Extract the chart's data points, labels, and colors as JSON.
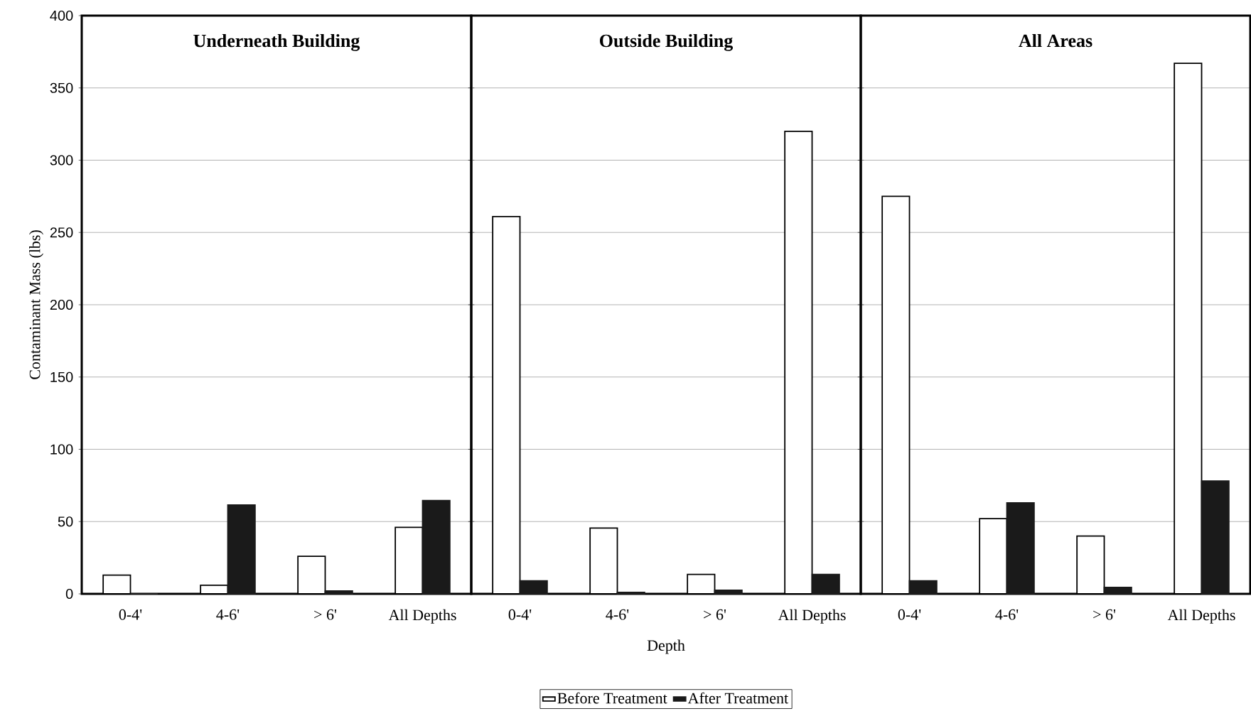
{
  "chart_data": [
    {
      "type": "bar",
      "title": "Underneath Building",
      "ylabel": "Contaminant Mass (lbs)",
      "categories": [
        "0-4'",
        "4-6'",
        "> 6'",
        "All Depths"
      ],
      "series": [
        {
          "color": "#ffffff",
          "values": [
            13,
            6,
            26,
            46
          ]
        },
        {
          "color": "#1a1a1a",
          "values": [
            0,
            61.5,
            2,
            64.5
          ]
        }
      ],
      "ylim": [
        0,
        400
      ],
      "yticks": [
        0,
        50,
        100,
        150,
        200,
        250,
        300,
        350,
        400
      ],
      "grid": "y"
    },
    {
      "type": "bar",
      "title": "Outside Building",
      "xlabel": "Depth",
      "categories": [
        "0-4'",
        "4-6'",
        "> 6'",
        "All Depths"
      ],
      "series": [
        {
          "name": "Before Treatment",
          "color": "#ffffff",
          "values": [
            261,
            45.5,
            13.5,
            320
          ]
        },
        {
          "name": "After Treatment",
          "color": "#1a1a1a",
          "values": [
            9,
            1,
            2.5,
            13.5
          ]
        }
      ],
      "ylim": [
        0,
        400
      ],
      "yticks": [
        0,
        50,
        100,
        150,
        200,
        250,
        300,
        350,
        400
      ],
      "grid": "y",
      "legend": "bottom",
      "tick_labels": "x"
    },
    {
      "type": "bar",
      "title": "All Areas",
      "categories": [
        "0-4'",
        "4-6'",
        "> 6'",
        "All Depths"
      ],
      "series": [
        {
          "color": "#ffffff",
          "values": [
            275,
            52,
            40,
            367
          ]
        },
        {
          "color": "#1a1a1a",
          "values": [
            9,
            63,
            4.5,
            78
          ]
        }
      ],
      "ylim": [
        0,
        400
      ],
      "yticks": [
        0,
        50,
        100,
        150,
        200,
        250,
        300,
        350,
        400
      ],
      "grid": "y",
      "tick_labels": "x"
    }
  ]
}
